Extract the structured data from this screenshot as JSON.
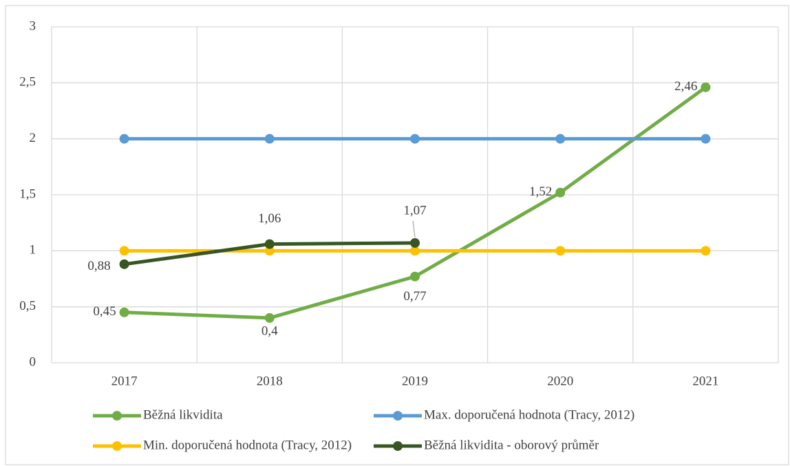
{
  "chart_data": {
    "type": "line",
    "categories": [
      "2017",
      "2018",
      "2019",
      "2020",
      "2021"
    ],
    "series": [
      {
        "name": "Běžná likvidita",
        "color": "#70ad47",
        "values": [
          0.45,
          0.4,
          0.77,
          1.52,
          2.46
        ],
        "value_labels": [
          "0,45",
          "0,4",
          "0,77",
          "1,52",
          "2,46"
        ]
      },
      {
        "name": "Max. doporučená hodnota (Tracy, 2012)",
        "color": "#5b9bd5",
        "values": [
          2,
          2,
          2,
          2,
          2
        ]
      },
      {
        "name": "Min. doporučená hodnota (Tracy, 2012)",
        "color": "#ffc000",
        "values": [
          1,
          1,
          1,
          1,
          1
        ]
      },
      {
        "name": "Běžná likvidita - oborový průměr",
        "color": "#375623",
        "values": [
          0.88,
          1.06,
          1.07,
          null,
          null
        ],
        "value_labels": [
          "0,88",
          "1,06",
          "1,07",
          null,
          null
        ]
      }
    ],
    "ylim": [
      0,
      3
    ],
    "yticks": [
      0,
      {
        "value": 0.5,
        "label": "0,5"
      },
      1,
      {
        "value": 1.5,
        "label": "1,5"
      },
      2,
      {
        "value": 2.5,
        "label": "2,5"
      },
      3
    ],
    "grid": true,
    "legend": "bottom"
  }
}
